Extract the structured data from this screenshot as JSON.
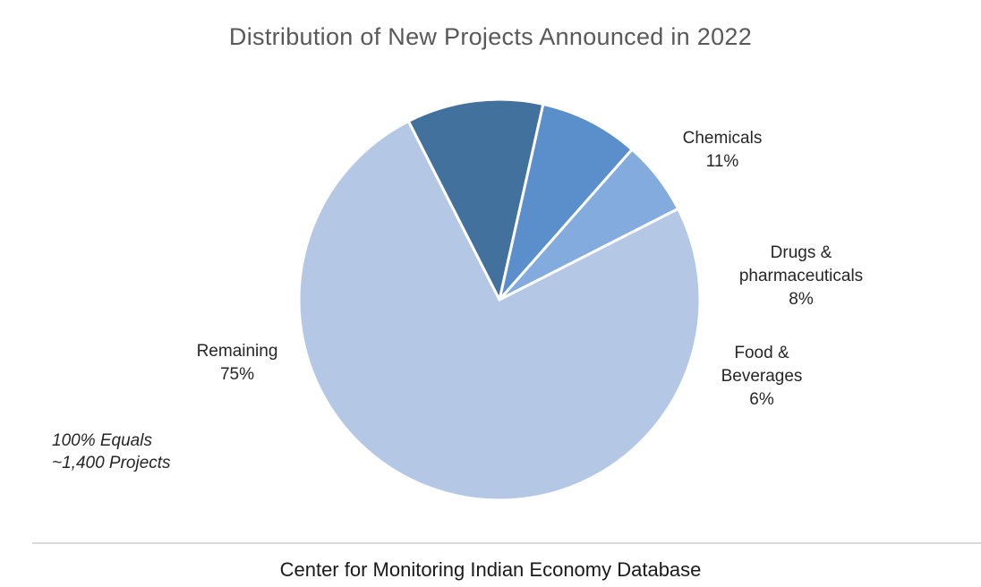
{
  "chart_data": {
    "type": "pie",
    "title": "Distribution of New Projects Announced in 2022",
    "slices": [
      {
        "name": "Chemicals",
        "label_lines": [
          "Chemicals"
        ],
        "value": 11,
        "value_label": "11%",
        "color": "#41719c"
      },
      {
        "name": "Drugs & pharmaceuticals",
        "label_lines": [
          "Drugs &",
          "pharmaceuticals"
        ],
        "value": 8,
        "value_label": "8%",
        "color": "#5b8fcb"
      },
      {
        "name": "Food & Beverages",
        "label_lines": [
          "Food &",
          "Beverages"
        ],
        "value": 6,
        "value_label": "6%",
        "color": "#84abde"
      },
      {
        "name": "Remaining",
        "label_lines": [
          "Remaining"
        ],
        "value": 75,
        "value_label": "75%",
        "color": "#b4c8e6"
      }
    ]
  },
  "note": {
    "line1": "100% Equals",
    "line2": "~1,400 Projects"
  },
  "source": "Center for Monitoring Indian Economy Database"
}
